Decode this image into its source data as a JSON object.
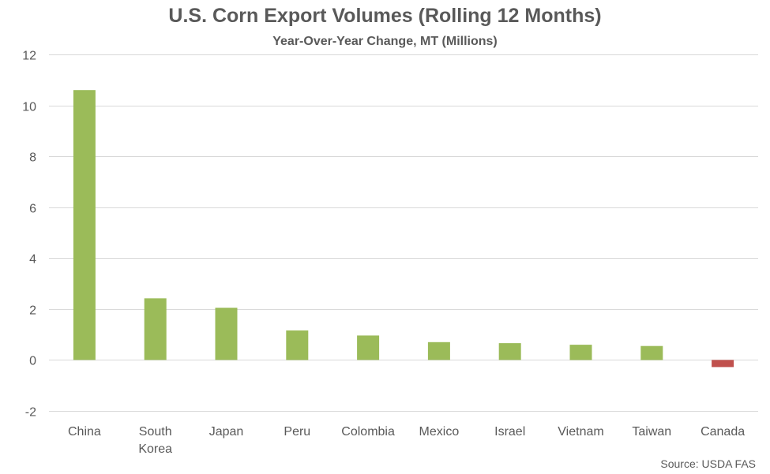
{
  "title": "U.S. Corn Export Volumes (Rolling 12 Months)",
  "subtitle": "Year-Over-Year Change, MT (Millions)",
  "source": "Source: USDA FAS",
  "colors": {
    "positive": "#9BBB59",
    "negative": "#C0504D",
    "grid": "#D9D9D9",
    "text": "#595959"
  },
  "chart_data": {
    "type": "bar",
    "title": "U.S. Corn Export Volumes (Rolling 12 Months)",
    "subtitle": "Year-Over-Year Change, MT (Millions)",
    "xlabel": "",
    "ylabel": "",
    "categories": [
      "China",
      "South Korea",
      "Japan",
      "Peru",
      "Colombia",
      "Mexico",
      "Israel",
      "Vietnam",
      "Taiwan",
      "Canada"
    ],
    "category_lines": [
      [
        "China"
      ],
      [
        "South",
        "Korea"
      ],
      [
        "Japan"
      ],
      [
        "Peru"
      ],
      [
        "Colombia"
      ],
      [
        "Mexico"
      ],
      [
        "Israel"
      ],
      [
        "Vietnam"
      ],
      [
        "Taiwan"
      ],
      [
        "Canada"
      ]
    ],
    "values": [
      10.6,
      2.42,
      2.05,
      1.16,
      0.96,
      0.7,
      0.66,
      0.6,
      0.55,
      -0.28
    ],
    "ylim": [
      -2,
      12
    ],
    "yticks": [
      -2,
      0,
      2,
      4,
      6,
      8,
      10,
      12
    ],
    "grid": true,
    "legend": "none"
  }
}
